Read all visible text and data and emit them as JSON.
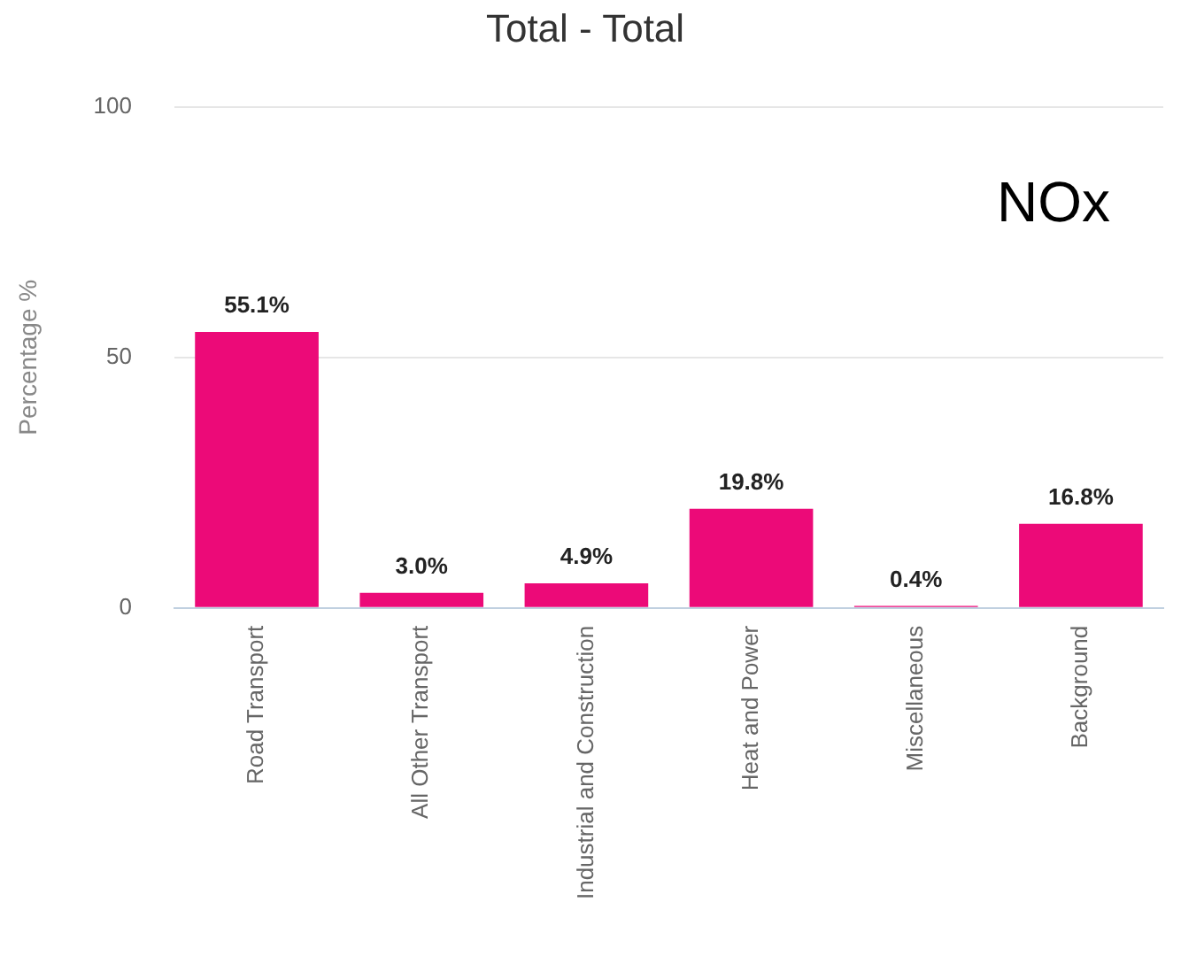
{
  "chart_data": {
    "type": "bar",
    "title": "Total - Total",
    "ylabel": "Percentage %",
    "categories": [
      "Road Transport",
      "All Other Transport",
      "Industrial and Construction",
      "Heat and Power",
      "Miscellaneous",
      "Background"
    ],
    "values": [
      55.1,
      3.0,
      4.9,
      19.8,
      0.4,
      16.8
    ],
    "color": "#ec0a78",
    "value_labels": [
      "55.1%",
      "3.0%",
      "4.9%",
      "19.8%",
      "0.4%",
      "16.8%"
    ],
    "ylim": [
      0,
      100
    ],
    "yticks": [
      0,
      50,
      100
    ],
    "grid": "y",
    "legend": false,
    "annotations": [
      "NOx"
    ]
  }
}
